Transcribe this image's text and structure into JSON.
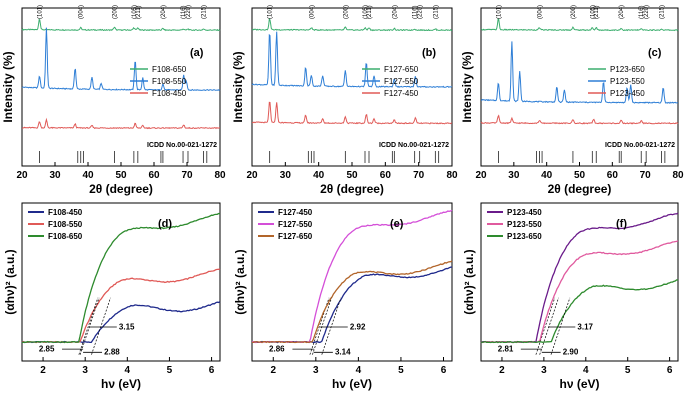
{
  "chart_data": [
    {
      "id": "a",
      "type": "line",
      "panel_label": "(a)",
      "xlabel": "2θ (degree)",
      "ylabel": "Intensity (%)",
      "xlim": [
        20,
        80
      ],
      "xticks": [
        20,
        30,
        40,
        50,
        60,
        70,
        80
      ],
      "legend": [
        "F108-650",
        "F108-550",
        "F108-450"
      ],
      "peak_labels": [
        "(101)",
        "(004)",
        "(200)",
        "(105)",
        "(211)",
        "(204)",
        "(116)",
        "(220)",
        "(215)"
      ],
      "icdd_label": "ICDD No.00-021-1272",
      "series": [
        {
          "name": "F108-650",
          "color": "#3cae6e",
          "offset": 0.86,
          "scale": 0.07,
          "peaks": [
            [
              25.3,
              1
            ],
            [
              37.8,
              0.2
            ],
            [
              48.0,
              0.25
            ],
            [
              53.9,
              0.2
            ],
            [
              55.1,
              0.2
            ],
            [
              62.7,
              0.15
            ],
            [
              68.8,
              0.1
            ],
            [
              70.3,
              0.1
            ],
            [
              75.0,
              0.1
            ]
          ]
        },
        {
          "name": "F108-550",
          "color": "#2f7fd6",
          "offset": 0.48,
          "scale": 0.38,
          "peaks": [
            [
              25.3,
              0.2
            ],
            [
              27.4,
              1
            ],
            [
              36.1,
              0.35
            ],
            [
              41.2,
              0.2
            ],
            [
              44.0,
              0.1
            ],
            [
              54.3,
              0.5
            ],
            [
              56.6,
              0.2
            ],
            [
              62.7,
              0.1
            ],
            [
              69.0,
              0.25
            ],
            [
              69.8,
              0.15
            ]
          ]
        },
        {
          "name": "F108-450",
          "color": "#e05a57",
          "offset": 0.24,
          "scale": 0.05,
          "peaks": [
            [
              25.3,
              0.8
            ],
            [
              27.4,
              1
            ],
            [
              36.1,
              0.5
            ],
            [
              41.2,
              0.3
            ],
            [
              54.3,
              0.6
            ],
            [
              56.6,
              0.3
            ],
            [
              69.0,
              0.4
            ]
          ]
        }
      ],
      "reference_lines": [
        25.3,
        36.9,
        37.8,
        38.6,
        48.0,
        53.9,
        55.1,
        62.1,
        62.7,
        68.8,
        70.3,
        75.0,
        76.0
      ]
    },
    {
      "id": "b",
      "type": "line",
      "panel_label": "(b)",
      "xlabel": "2θ (degree)",
      "ylabel": "Intensity (%)",
      "xlim": [
        20,
        80
      ],
      "xticks": [
        20,
        30,
        40,
        50,
        60,
        70,
        80
      ],
      "legend": [
        "F127-650",
        "F127-550",
        "F127-450"
      ],
      "peak_labels": [
        "(101)",
        "(004)",
        "(200)",
        "(105)",
        "(211)",
        "(204)",
        "(116)",
        "(220)",
        "(215)"
      ],
      "icdd_label": "ICDD No.00-021-1272",
      "series": [
        {
          "name": "F127-650",
          "color": "#3cae6e",
          "offset": 0.86,
          "scale": 0.07,
          "peaks": [
            [
              25.3,
              1
            ],
            [
              37.8,
              0.2
            ],
            [
              48.0,
              0.25
            ],
            [
              53.9,
              0.2
            ],
            [
              55.1,
              0.2
            ],
            [
              62.7,
              0.15
            ],
            [
              68.8,
              0.1
            ],
            [
              75.0,
              0.1
            ]
          ]
        },
        {
          "name": "F127-550",
          "color": "#2f7fd6",
          "offset": 0.5,
          "scale": 0.34,
          "peaks": [
            [
              25.3,
              1
            ],
            [
              27.4,
              1
            ],
            [
              36.1,
              0.35
            ],
            [
              37.8,
              0.2
            ],
            [
              41.2,
              0.2
            ],
            [
              48.0,
              0.3
            ],
            [
              54.3,
              0.45
            ],
            [
              56.6,
              0.2
            ],
            [
              62.7,
              0.15
            ],
            [
              69.0,
              0.2
            ]
          ]
        },
        {
          "name": "F127-450",
          "color": "#e05a57",
          "offset": 0.27,
          "scale": 0.14,
          "peaks": [
            [
              25.3,
              1
            ],
            [
              27.4,
              0.9
            ],
            [
              36.1,
              0.35
            ],
            [
              41.2,
              0.2
            ],
            [
              48.0,
              0.3
            ],
            [
              54.3,
              0.4
            ],
            [
              56.6,
              0.2
            ],
            [
              62.7,
              0.15
            ],
            [
              69.0,
              0.25
            ]
          ]
        }
      ],
      "reference_lines": [
        25.3,
        36.9,
        37.8,
        38.6,
        48.0,
        53.9,
        55.1,
        62.1,
        62.7,
        68.8,
        70.3,
        75.0,
        76.0
      ]
    },
    {
      "id": "c",
      "type": "line",
      "panel_label": "(c)",
      "xlabel": "2θ (degree)",
      "ylabel": "Intensity (%)",
      "xlim": [
        20,
        80
      ],
      "xticks": [
        20,
        30,
        40,
        50,
        60,
        70,
        80
      ],
      "legend": [
        "P123-650",
        "P123-550",
        "P123-450"
      ],
      "peak_labels": [
        "(101)",
        "(004)",
        "(200)",
        "(105)",
        "(211)",
        "(204)",
        "(116)",
        "(220)",
        "(215)"
      ],
      "icdd_label": "ICDD No.00-021-1272",
      "series": [
        {
          "name": "P123-650",
          "color": "#3cae6e",
          "offset": 0.86,
          "scale": 0.07,
          "peaks": [
            [
              25.3,
              1
            ],
            [
              37.8,
              0.2
            ],
            [
              48.0,
              0.25
            ],
            [
              53.9,
              0.2
            ],
            [
              55.1,
              0.2
            ],
            [
              62.7,
              0.15
            ],
            [
              68.8,
              0.1
            ],
            [
              75.0,
              0.1
            ]
          ]
        },
        {
          "name": "P123-550",
          "color": "#2f7fd6",
          "offset": 0.4,
          "scale": 0.38,
          "peaks": [
            [
              25.3,
              0.3
            ],
            [
              29.4,
              1
            ],
            [
              31.8,
              0.5
            ],
            [
              43.1,
              0.25
            ],
            [
              45.4,
              0.2
            ],
            [
              57.3,
              0.35
            ],
            [
              64.5,
              0.25
            ],
            [
              65.6,
              0.3
            ],
            [
              75.5,
              0.25
            ]
          ]
        },
        {
          "name": "P123-450",
          "color": "#e05a57",
          "offset": 0.27,
          "scale": 0.06,
          "peaks": [
            [
              25.3,
              0.8
            ],
            [
              29.4,
              0.5
            ],
            [
              37.8,
              0.3
            ],
            [
              48.0,
              0.4
            ],
            [
              54.3,
              0.4
            ],
            [
              62.7,
              0.3
            ],
            [
              68.8,
              0.3
            ]
          ]
        }
      ],
      "reference_lines": [
        25.3,
        36.9,
        37.8,
        38.6,
        48.0,
        53.9,
        55.1,
        62.1,
        62.7,
        68.8,
        70.3,
        75.0,
        76.0
      ]
    },
    {
      "id": "d",
      "type": "line",
      "panel_label": "(d)",
      "xlabel": "hν (eV)",
      "ylabel": "(αhν)² (a.u.)",
      "xlim": [
        1.5,
        6.2
      ],
      "xticks": [
        2,
        3,
        4,
        5,
        6
      ],
      "legend": [
        "F108-450",
        "F108-550",
        "F108-650"
      ],
      "annotations": [
        "3.15",
        "2.85",
        "2.88"
      ],
      "series": [
        {
          "name": "F108-450",
          "color": "#1f2a8c",
          "edge": 3.15,
          "plateau": 0.36
        },
        {
          "name": "F108-550",
          "color": "#e05a57",
          "edge": 2.88,
          "plateau": 0.55
        },
        {
          "name": "F108-650",
          "color": "#2e8b2e",
          "edge": 2.85,
          "plateau": 0.9
        }
      ]
    },
    {
      "id": "e",
      "type": "line",
      "panel_label": "(e)",
      "xlabel": "hν (eV)",
      "ylabel": "(αhν)² (a.u.)",
      "xlim": [
        1.5,
        6.2
      ],
      "xticks": [
        2,
        3,
        4,
        5,
        6
      ],
      "legend": [
        "F127-450",
        "F127-550",
        "F127-650"
      ],
      "annotations": [
        "2.92",
        "2.86",
        "3.14"
      ],
      "series": [
        {
          "name": "F127-450",
          "color": "#1f2a8c",
          "edge": 3.14,
          "plateau": 0.58
        },
        {
          "name": "F127-550",
          "color": "#d44fd8",
          "edge": 2.86,
          "plateau": 0.92
        },
        {
          "name": "F127-650",
          "color": "#b2652a",
          "edge": 2.92,
          "plateau": 0.6
        }
      ]
    },
    {
      "id": "f",
      "type": "line",
      "panel_label": "(f)",
      "xlabel": "hν (eV)",
      "ylabel": "(αhν)² (a.u.)",
      "xlim": [
        1.5,
        6.2
      ],
      "xticks": [
        2,
        3,
        4,
        5,
        6
      ],
      "legend": [
        "P123-450",
        "P123-550",
        "P123-650"
      ],
      "annotations": [
        "3.17",
        "2.81",
        "2.90"
      ],
      "series": [
        {
          "name": "P123-450",
          "color": "#6a1b8a",
          "edge": 2.81,
          "plateau": 0.9
        },
        {
          "name": "P123-550",
          "color": "#e05a9e",
          "edge": 2.9,
          "plateau": 0.73
        },
        {
          "name": "P123-650",
          "color": "#2e8b2e",
          "edge": 3.17,
          "plateau": 0.5
        }
      ]
    }
  ]
}
